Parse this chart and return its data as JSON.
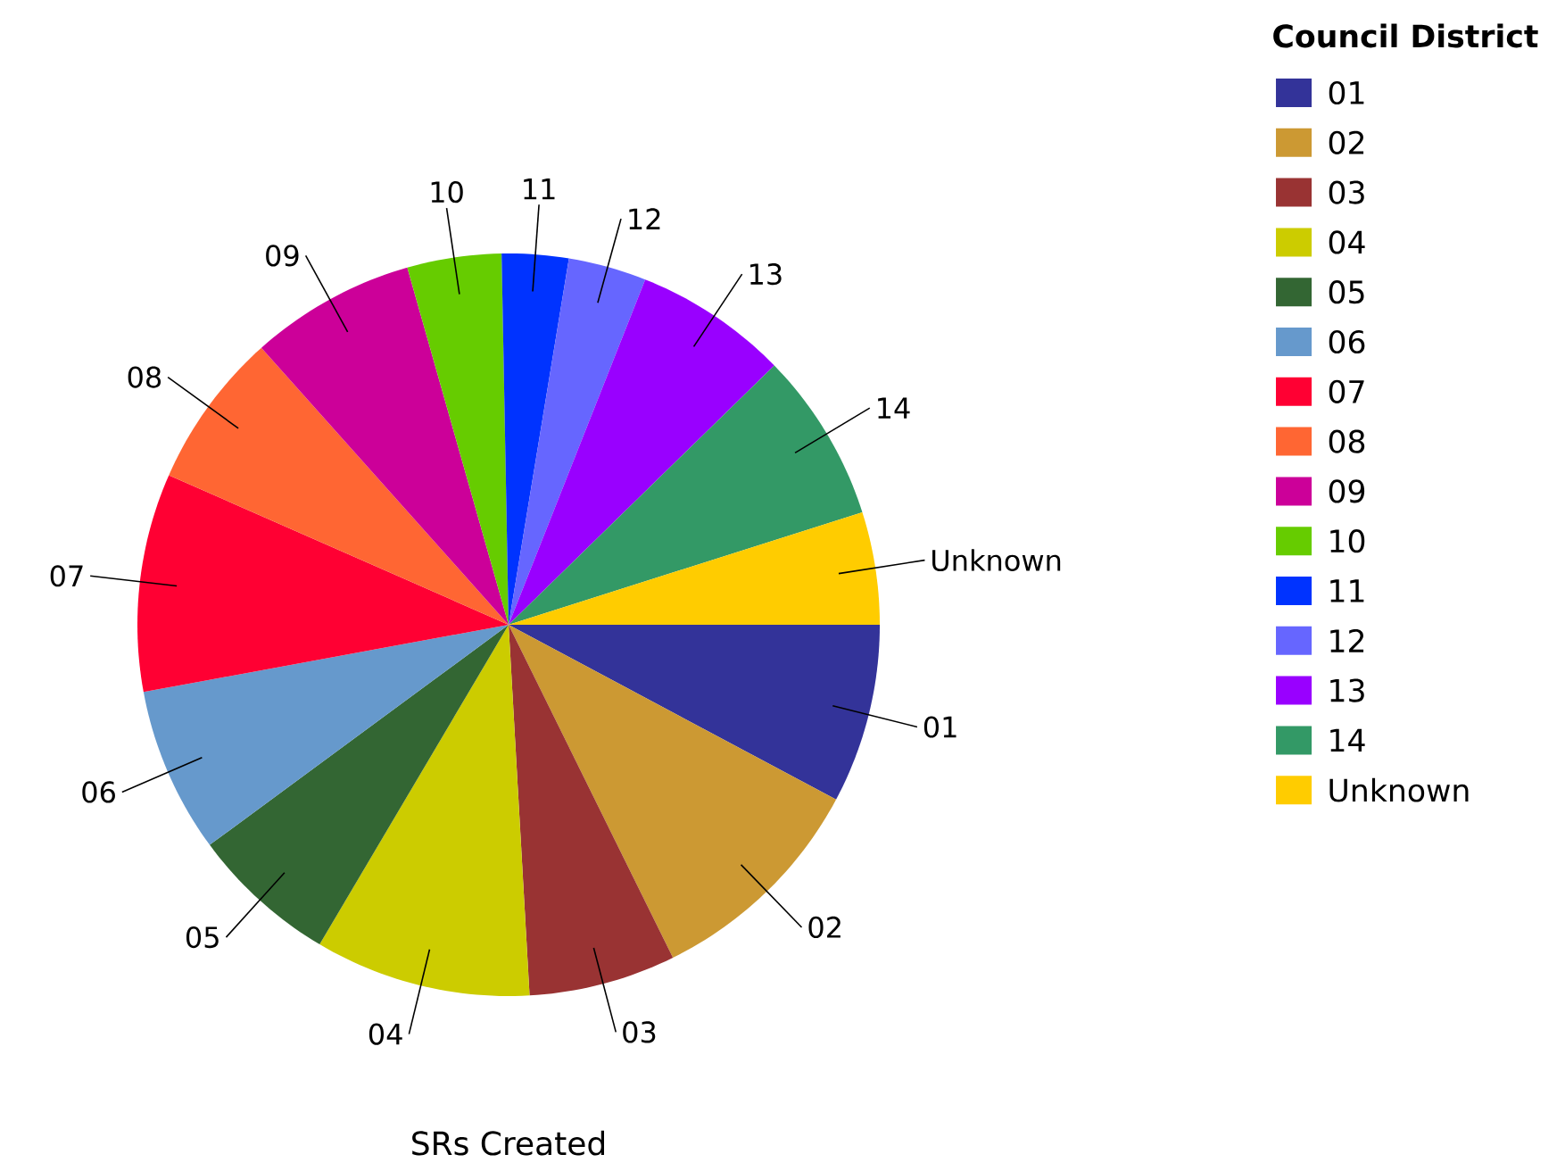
{
  "chart_data": {
    "type": "pie",
    "xlabel": "SRs Created",
    "legend_title": "Council District",
    "legend": "right",
    "categories": [
      "01",
      "02",
      "03",
      "04",
      "05",
      "06",
      "07",
      "08",
      "09",
      "10",
      "11",
      "12",
      "13",
      "14",
      "Unknown"
    ],
    "values": [
      7.8,
      9.9,
      6.4,
      9.4,
      6.4,
      7.2,
      9.5,
      6.8,
      7.2,
      4.1,
      2.9,
      3.4,
      6.7,
      7.4,
      4.9
    ],
    "colors": [
      "#333399",
      "#cc9933",
      "#993333",
      "#cccc00",
      "#336633",
      "#6699cc",
      "#ff0033",
      "#ff6633",
      "#cc0099",
      "#66cc00",
      "#0033ff",
      "#6666ff",
      "#9900ff",
      "#339966",
      "#ffcc00"
    ]
  }
}
